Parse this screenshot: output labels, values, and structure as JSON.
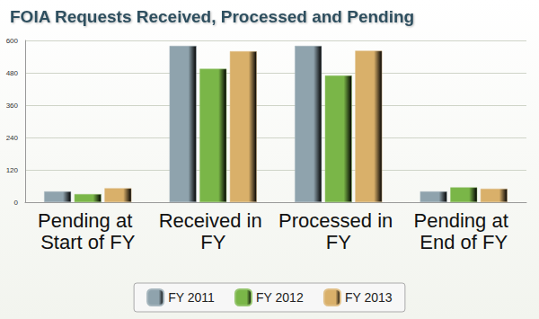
{
  "chart_data": {
    "type": "bar",
    "title": "FOIA Requests Received, Processed and Pending",
    "categories": [
      "Pending at Start of FY",
      "Received in FY",
      "Processed in FY",
      "Pending at End of FY"
    ],
    "series": [
      {
        "name": "FY 2011",
        "color": "#8fa3ad",
        "values": [
          40,
          580,
          580,
          40
        ]
      },
      {
        "name": "FY 2012",
        "color": "#7ab648",
        "values": [
          30,
          495,
          470,
          55
        ]
      },
      {
        "name": "FY 2013",
        "color": "#d9b06a",
        "values": [
          52,
          560,
          562,
          50
        ]
      }
    ],
    "ylim": [
      0,
      600
    ],
    "yticks": [
      0,
      120,
      240,
      360,
      480,
      600
    ],
    "grid": true,
    "legend": "bottom"
  }
}
